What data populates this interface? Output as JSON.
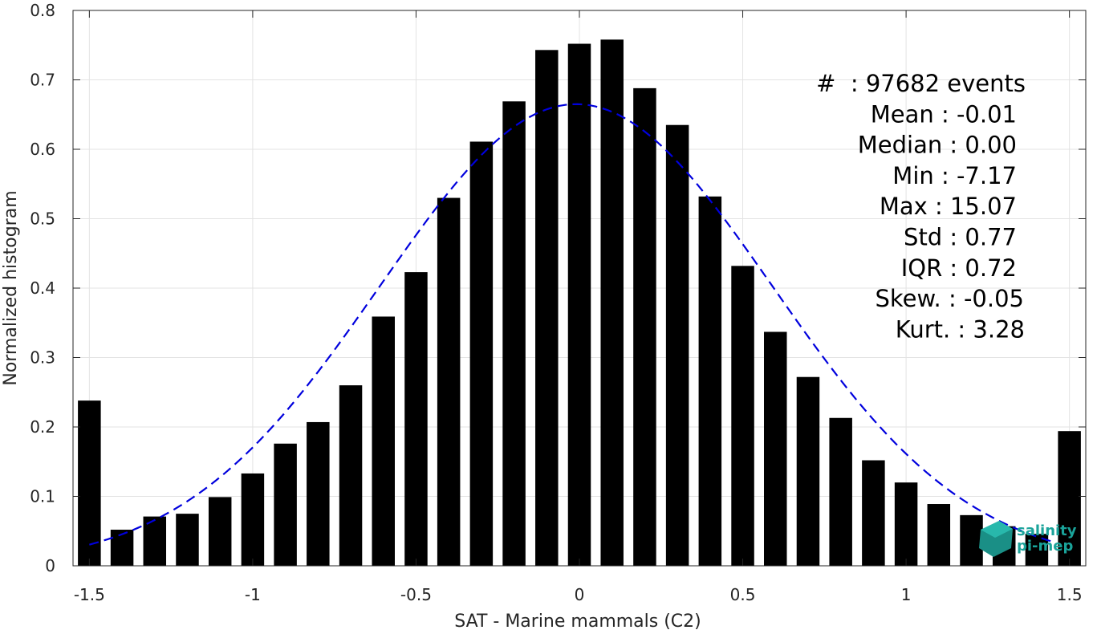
{
  "chart_data": {
    "type": "bar",
    "xlabel": "SAT - Marine mammals (C2)",
    "ylabel": "Normalized histogram",
    "xlim": [
      -1.55,
      1.55
    ],
    "ylim": [
      0,
      0.8
    ],
    "xticks": [
      -1.5,
      -1,
      -0.5,
      0,
      0.5,
      1,
      1.5
    ],
    "xtick_labels": [
      "-1.5",
      "-1",
      "-0.5",
      "0",
      "0.5",
      "1",
      "1.5"
    ],
    "yticks": [
      0,
      0.1,
      0.2,
      0.3,
      0.4,
      0.5,
      0.6,
      0.7,
      0.8
    ],
    "ytick_labels": [
      "0",
      "0.1",
      "0.2",
      "0.3",
      "0.4",
      "0.5",
      "0.6",
      "0.7",
      "0.8"
    ],
    "grid": true,
    "bar_color": "#000000",
    "x": [
      -1.5,
      -1.4,
      -1.3,
      -1.2,
      -1.1,
      -1.0,
      -0.9,
      -0.8,
      -0.7,
      -0.6,
      -0.5,
      -0.4,
      -0.3,
      -0.2,
      -0.1,
      0.0,
      0.1,
      0.2,
      0.3,
      0.4,
      0.5,
      0.6,
      0.7,
      0.8,
      0.9,
      1.0,
      1.1,
      1.2,
      1.3,
      1.4,
      1.5
    ],
    "values": [
      0.238,
      0.052,
      0.071,
      0.075,
      0.099,
      0.133,
      0.176,
      0.207,
      0.26,
      0.359,
      0.423,
      0.53,
      0.611,
      0.669,
      0.743,
      0.752,
      0.758,
      0.688,
      0.635,
      0.532,
      0.432,
      0.337,
      0.272,
      0.213,
      0.152,
      0.12,
      0.089,
      0.073,
      0.057,
      0.046,
      0.194
    ],
    "fit": {
      "type": "gaussian",
      "mean": -0.01,
      "std": 0.6,
      "peak": 0.665,
      "x_range": [
        -1.5,
        1.45
      ],
      "color": "#0000dd",
      "style": "dashed"
    },
    "annotations": [
      "#  : 97682 events",
      "Mean : -0.01",
      "Median : 0.00",
      "Min : -7.17",
      "Max : 15.07",
      "Std : 0.77",
      "IQR : 0.72",
      "Skew. : -0.05",
      "Kurt. : 3.28"
    ]
  },
  "logo": {
    "line1": "salinity",
    "line2": "pi-mep",
    "color": "#1aa39a"
  }
}
